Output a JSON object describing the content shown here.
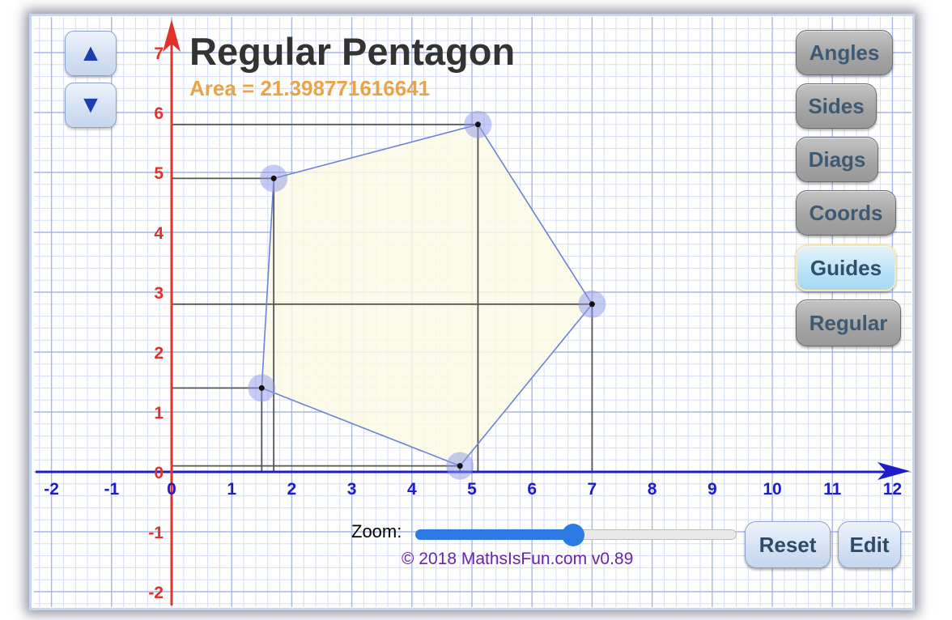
{
  "title": "Regular Pentagon",
  "area_text": "Area = 21.398771616641",
  "nav": {
    "up_icon": "▲",
    "down_icon": "▼"
  },
  "buttons": {
    "angles": "Angles",
    "sides": "Sides",
    "diags": "Diags",
    "coords": "Coords",
    "guides": "Guides",
    "regular": "Regular",
    "reset": "Reset",
    "edit": "Edit"
  },
  "active_button": "guides",
  "zoom": {
    "label": "Zoom:",
    "value": 0.49
  },
  "copyright": "© 2018 MathsIsFun.com v0.89",
  "graph": {
    "x_ticks": [
      "-2",
      "-1",
      "0",
      "1",
      "2",
      "3",
      "4",
      "5",
      "6",
      "7",
      "8",
      "9",
      "10",
      "11",
      "12"
    ],
    "y_ticks": [
      "-2",
      "-1",
      "0",
      "1",
      "2",
      "3",
      "4",
      "5",
      "6",
      "7"
    ],
    "x_range": [
      -2,
      12
    ],
    "y_range": [
      -2,
      7
    ],
    "vertices": [
      {
        "x": 1.7,
        "y": 4.9
      },
      {
        "x": 5.1,
        "y": 5.8
      },
      {
        "x": 7.0,
        "y": 2.8
      },
      {
        "x": 4.8,
        "y": 0.1
      },
      {
        "x": 1.5,
        "y": 1.4
      }
    ],
    "colors": {
      "x_axis": "#1c1ccc",
      "y_axis": "#e0312b",
      "polygon_stroke": "#6a83d8",
      "polygon_fill": "#fbf9e4",
      "guides": "#555555",
      "grid_major": "#a8b6e6",
      "grid_minor": "#d6ddf3",
      "vertex_halo": "#8c97e6"
    }
  },
  "colors": {
    "title": "#333333",
    "area": "#e8a447",
    "copyright": "#6a24a5",
    "slider": "#2c7be5"
  }
}
